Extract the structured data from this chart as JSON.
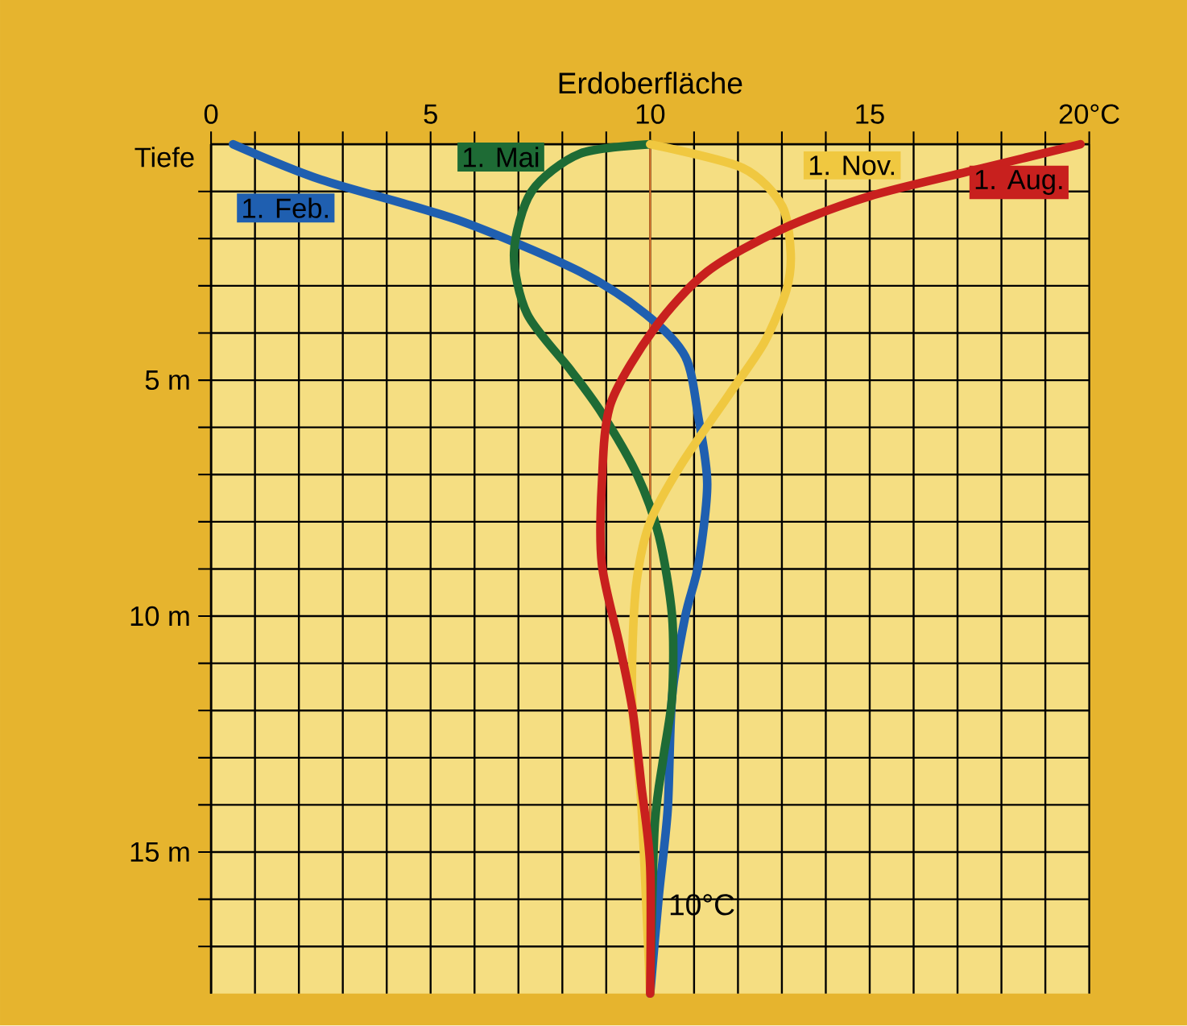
{
  "chart_data": {
    "type": "line",
    "xlabel": "Erdoberfläche",
    "ylabel": "Tiefe",
    "xlim": [
      0,
      20
    ],
    "ylim": [
      18,
      0
    ],
    "xticks": [
      0,
      {
        "value": 1,
        "label": null
      },
      {
        "value": 2,
        "label": null
      },
      {
        "value": 3,
        "label": null
      },
      {
        "value": 4,
        "label": null
      },
      5,
      {
        "value": 6,
        "label": null
      },
      {
        "value": 7,
        "label": null
      },
      {
        "value": 8,
        "label": null
      },
      {
        "value": 9,
        "label": null
      },
      10,
      {
        "value": 11,
        "label": null
      },
      {
        "value": 12,
        "label": null
      },
      {
        "value": 13,
        "label": null
      },
      {
        "value": 14,
        "label": null
      },
      15,
      {
        "value": 16,
        "label": null
      },
      {
        "value": 17,
        "label": null
      },
      {
        "value": 18,
        "label": null
      },
      {
        "value": 19,
        "label": null
      },
      {
        "value": 20,
        "label": "20°C"
      }
    ],
    "yticks": [
      {
        "value": 1,
        "label": null
      },
      {
        "value": 2,
        "label": null
      },
      {
        "value": 3,
        "label": null
      },
      {
        "value": 4,
        "label": null
      },
      {
        "value": 5,
        "label": "5 m"
      },
      {
        "value": 6,
        "label": null
      },
      {
        "value": 7,
        "label": null
      },
      {
        "value": 8,
        "label": null
      },
      {
        "value": 9,
        "label": null
      },
      {
        "value": 10,
        "label": "10 m"
      },
      {
        "value": 11,
        "label": null
      },
      {
        "value": 12,
        "label": null
      },
      {
        "value": 13,
        "label": null
      },
      {
        "value": 14,
        "label": null
      },
      {
        "value": 15,
        "label": "15 m"
      },
      {
        "value": 16,
        "label": null
      },
      {
        "value": 17,
        "label": null
      }
    ],
    "grid": true,
    "marker": "none",
    "line_style": "solid",
    "ref_lines": [
      {
        "axis": "x",
        "value": 10,
        "color": "#e07a30"
      }
    ],
    "annotations": [
      {
        "text": "10°C",
        "x": 10,
        "y": 16.5
      }
    ],
    "series": [
      {
        "name": "1. Feb.",
        "color": "#1f5fb0",
        "x": [
          0.5,
          2.5,
          5.6,
          8.4,
          9.9,
          10.8,
          11.1,
          11.3,
          11.1,
          10.8,
          10.5,
          10.4,
          10.2,
          10.0
        ],
        "values": [
          0,
          0.75,
          1.6,
          2.7,
          3.6,
          4.5,
          5.8,
          7.2,
          8.9,
          10.0,
          11.7,
          14.1,
          15.9,
          18
        ]
      },
      {
        "name": "1. Mai",
        "color": "#1e6b35",
        "x": [
          10.0,
          8.4,
          7.3,
          6.9,
          7.2,
          8.2,
          8.9,
          9.7,
          10.2,
          10.5,
          10.5,
          10.3,
          10.1,
          10.0
        ],
        "values": [
          0,
          0.2,
          1.0,
          2.3,
          3.6,
          4.8,
          5.7,
          7.0,
          8.3,
          10.0,
          11.7,
          13.0,
          14.5,
          18
        ]
      },
      {
        "name": "1. Nov.",
        "color": "#f0c840",
        "x": [
          10.0,
          12.1,
          13.0,
          13.2,
          13.1,
          12.6,
          11.8,
          10.7,
          10.0,
          9.7,
          9.6,
          9.6,
          9.8,
          10.0
        ],
        "values": [
          0,
          0.5,
          1.3,
          2.3,
          3.1,
          4.2,
          5.3,
          6.8,
          8.0,
          9.2,
          10.6,
          12.0,
          14.0,
          18
        ]
      },
      {
        "name": "1. Aug.",
        "color": "#c8201e",
        "x": [
          19.8,
          17.6,
          15.0,
          13.0,
          11.3,
          10.1,
          9.1,
          8.9,
          8.9,
          9.3,
          9.6,
          9.8,
          10.0,
          10.0
        ],
        "values": [
          0,
          0.5,
          1.1,
          1.8,
          2.7,
          3.9,
          5.5,
          7.2,
          8.9,
          10.6,
          12.0,
          13.6,
          15.3,
          18
        ]
      }
    ]
  }
}
